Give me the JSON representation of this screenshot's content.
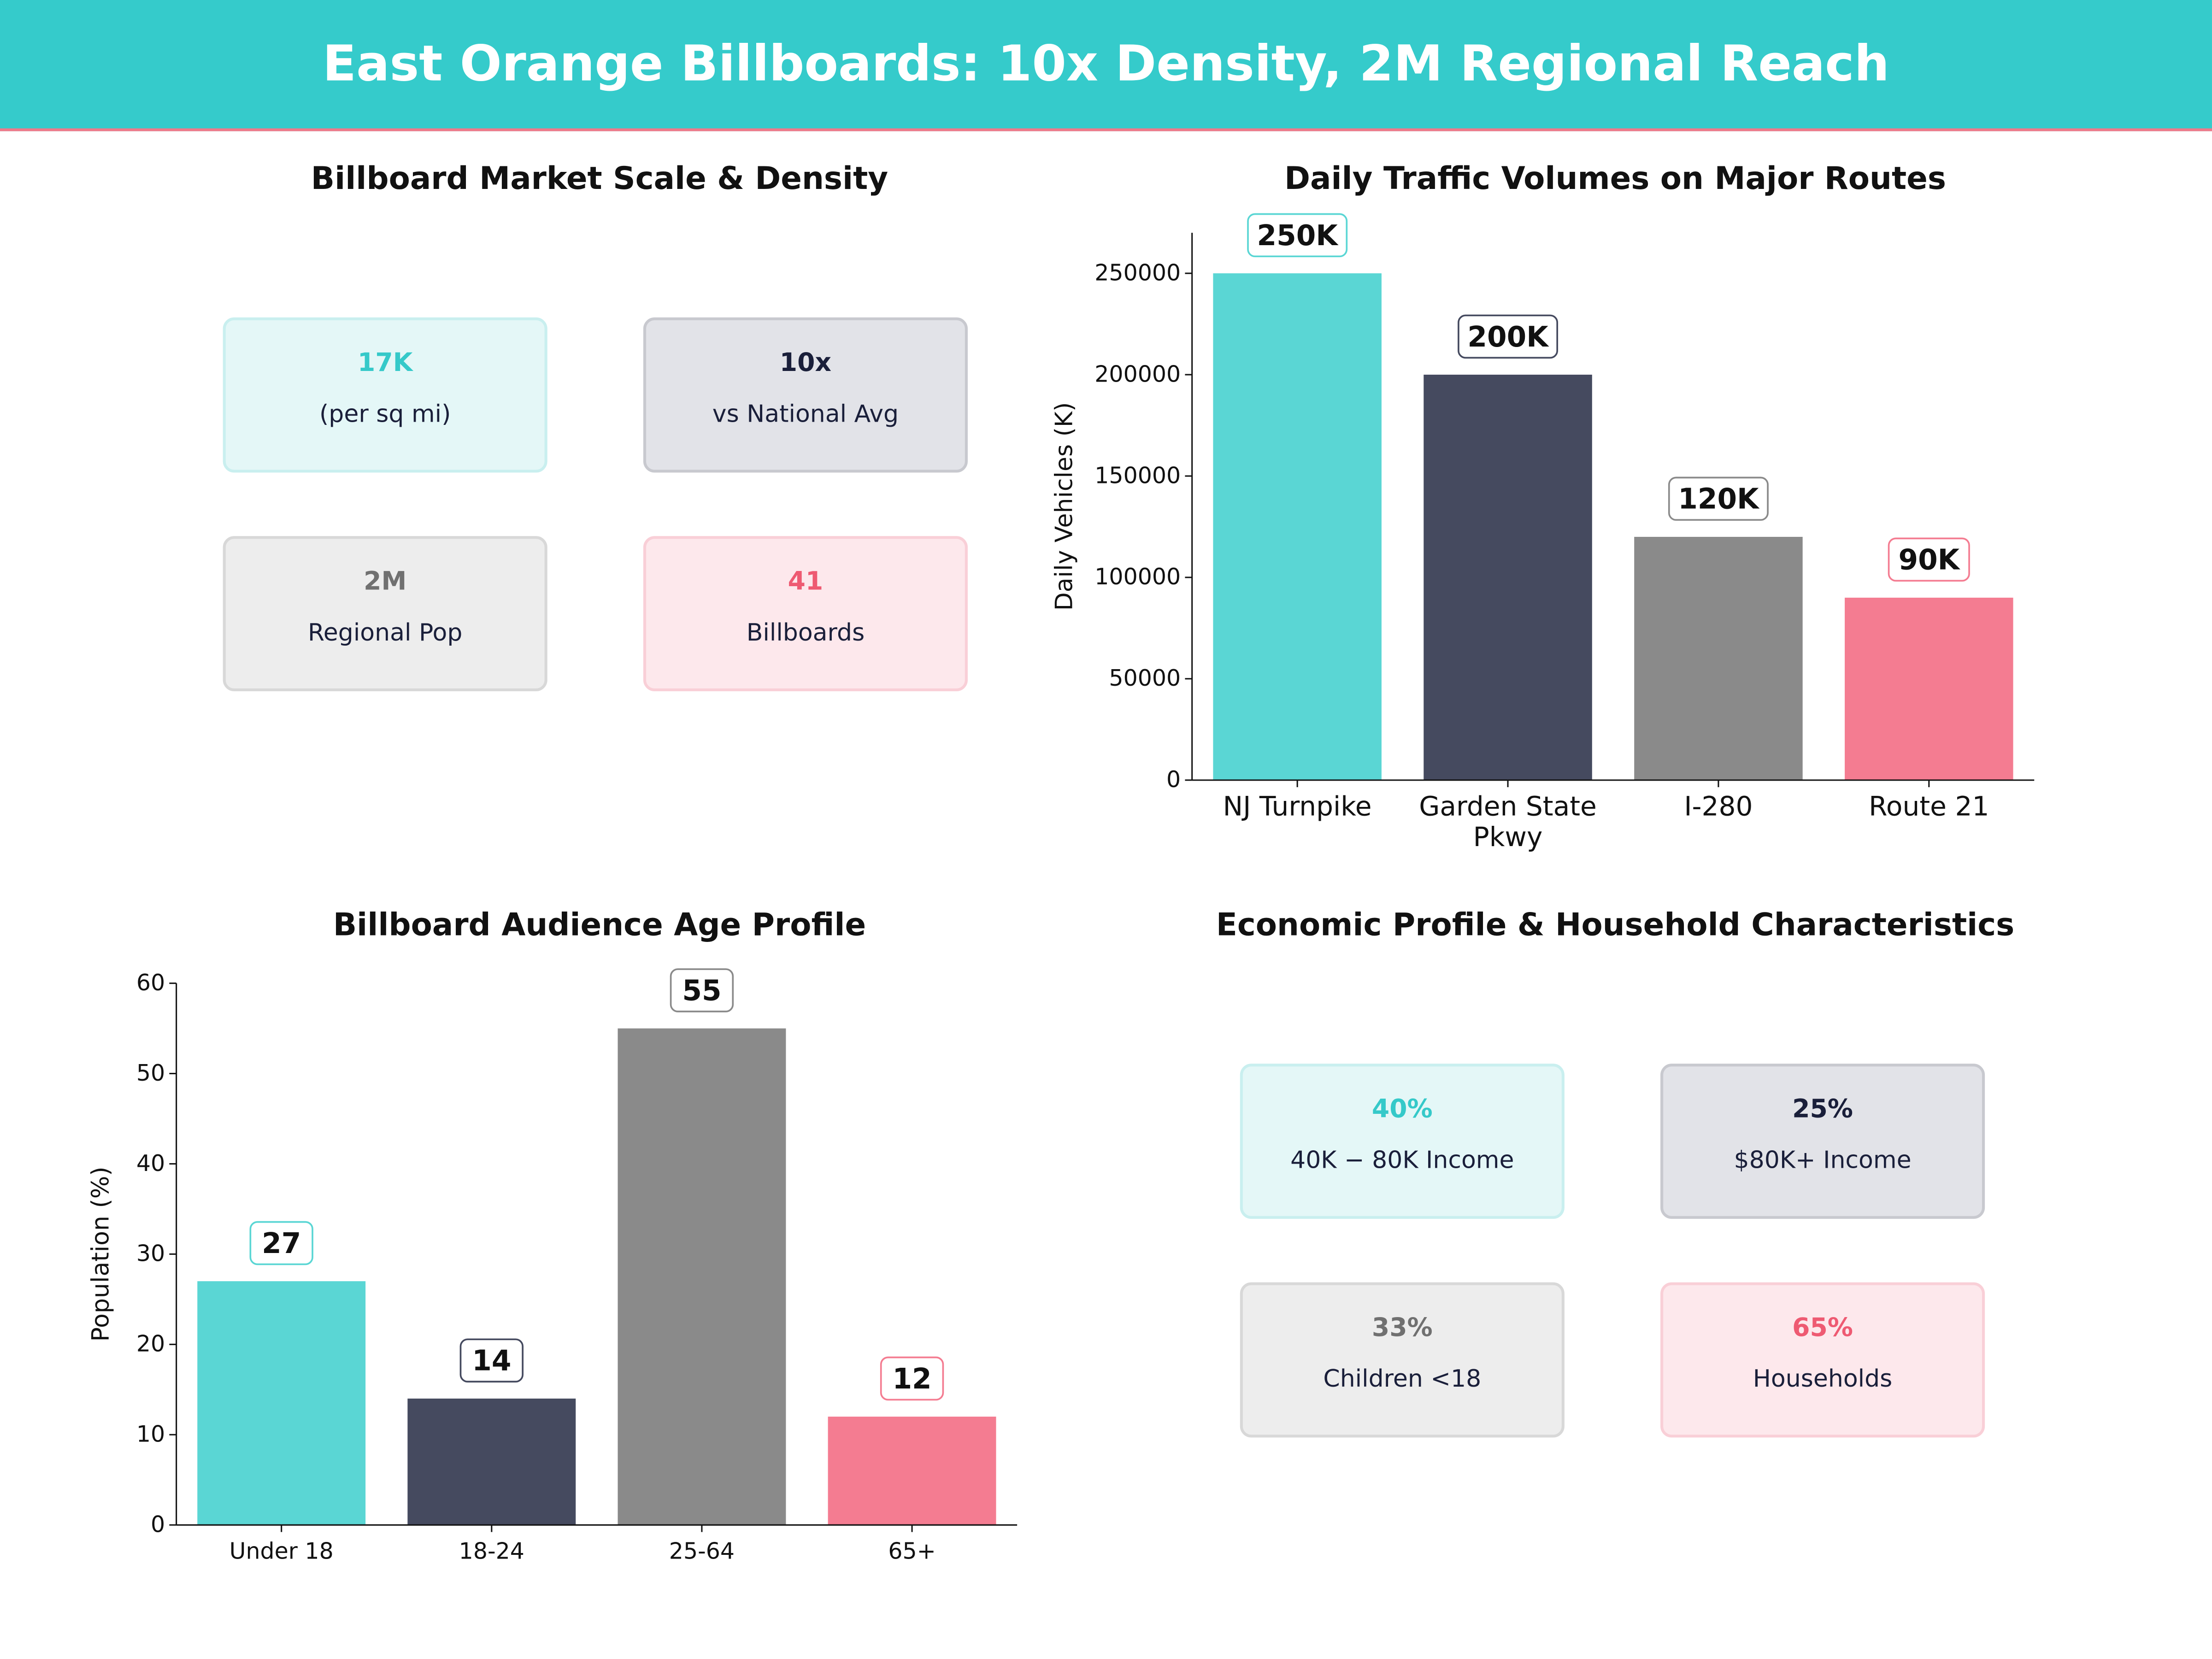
{
  "header": {
    "title": "East Orange Billboards: 10x Density, 2M Regional Reach"
  },
  "colors": {
    "teal": "#5ad6d4",
    "navy": "#454a5f",
    "gray": "#8a8a8a",
    "pink": "#f47c91"
  },
  "market": {
    "title": "Billboard Market Scale & Density",
    "cards": [
      {
        "value": "17K",
        "label": "(per sq mi)",
        "color": "#35c9c9"
      },
      {
        "value": "10x",
        "label": "vs National Avg",
        "color": "#1a1f3a"
      },
      {
        "value": "2M",
        "label": "Regional Pop",
        "color": "#707070"
      },
      {
        "value": "41",
        "label": "Billboards",
        "color": "#ee5a72"
      }
    ]
  },
  "economic": {
    "title": "Economic Profile & Household Characteristics",
    "cards": [
      {
        "value": "40%",
        "label": "40K − 80K Income",
        "color": "#35c9c9"
      },
      {
        "value": "25%",
        "label": "$80K+ Income",
        "color": "#1a1f3a"
      },
      {
        "value": "33%",
        "label": "Children <18",
        "color": "#707070"
      },
      {
        "value": "65%",
        "label": "Households",
        "color": "#ee5a72"
      }
    ]
  },
  "chart_data": [
    {
      "type": "bar",
      "title": "Daily Traffic Volumes on Major Routes",
      "xlabel": "",
      "ylabel": "Daily Vehicles (K)",
      "categories": [
        "NJ Turnpike",
        "Garden State Pkwy",
        "I-280",
        "Route 21"
      ],
      "values": [
        250000,
        200000,
        120000,
        90000
      ],
      "data_labels": [
        "250K",
        "200K",
        "120K",
        "90K"
      ],
      "yticks": [
        0,
        50000,
        100000,
        150000,
        200000,
        250000
      ],
      "ylim": [
        0,
        270000
      ],
      "grid": false
    },
    {
      "type": "bar",
      "title": "Billboard Audience Age Profile",
      "xlabel": "",
      "ylabel": "Population (%)",
      "categories": [
        "Under 18",
        "18-24",
        "25-64",
        "65+"
      ],
      "values": [
        27,
        14,
        55,
        12
      ],
      "data_labels": [
        "27",
        "14",
        "55",
        "12"
      ],
      "yticks": [
        0,
        10,
        20,
        30,
        40,
        50,
        60
      ],
      "ylim": [
        0,
        60
      ],
      "grid": false
    }
  ]
}
